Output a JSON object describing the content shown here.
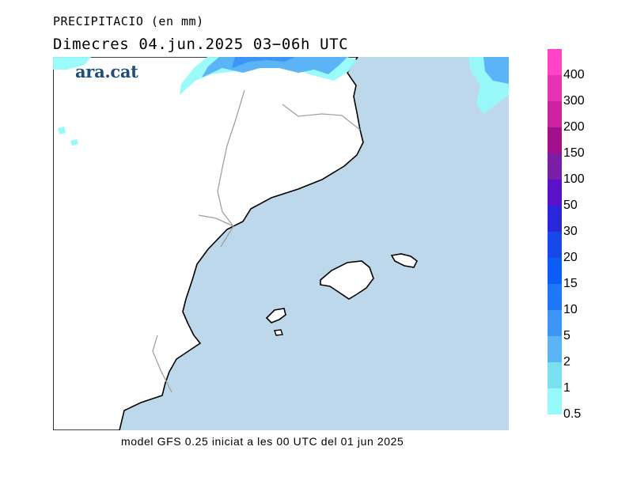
{
  "header": {
    "title": "PRECIPITACIO (en mm)",
    "subtitle": "Dimecres  04.jun.2025 03−06h UTC"
  },
  "brand": "ara.cat",
  "legend": {
    "levels": [
      {
        "label": "400",
        "color": "#ff44c8"
      },
      {
        "label": "300",
        "color": "#e633b4"
      },
      {
        "label": "200",
        "color": "#cc22a0"
      },
      {
        "label": "150",
        "color": "#a3118a"
      },
      {
        "label": "100",
        "color": "#7a1ea8"
      },
      {
        "label": "50",
        "color": "#5a12c8"
      },
      {
        "label": "30",
        "color": "#2828d8"
      },
      {
        "label": "20",
        "color": "#1848e8"
      },
      {
        "label": "15",
        "color": "#0a5ef5"
      },
      {
        "label": "10",
        "color": "#1e78f5"
      },
      {
        "label": "5",
        "color": "#3c96f5"
      },
      {
        "label": "2",
        "color": "#5ab4f5"
      },
      {
        "label": "1",
        "color": "#78e1f0"
      },
      {
        "label": "0.5",
        "color": "#96fafa"
      }
    ]
  },
  "footer": "model GFS 0.25 iniciat a les 00 UTC del 01 jun 2025",
  "colors": {
    "sea": "#bcd8ea",
    "land": "#ffffff",
    "coast": "#000000",
    "border": "#a0a0a0"
  }
}
